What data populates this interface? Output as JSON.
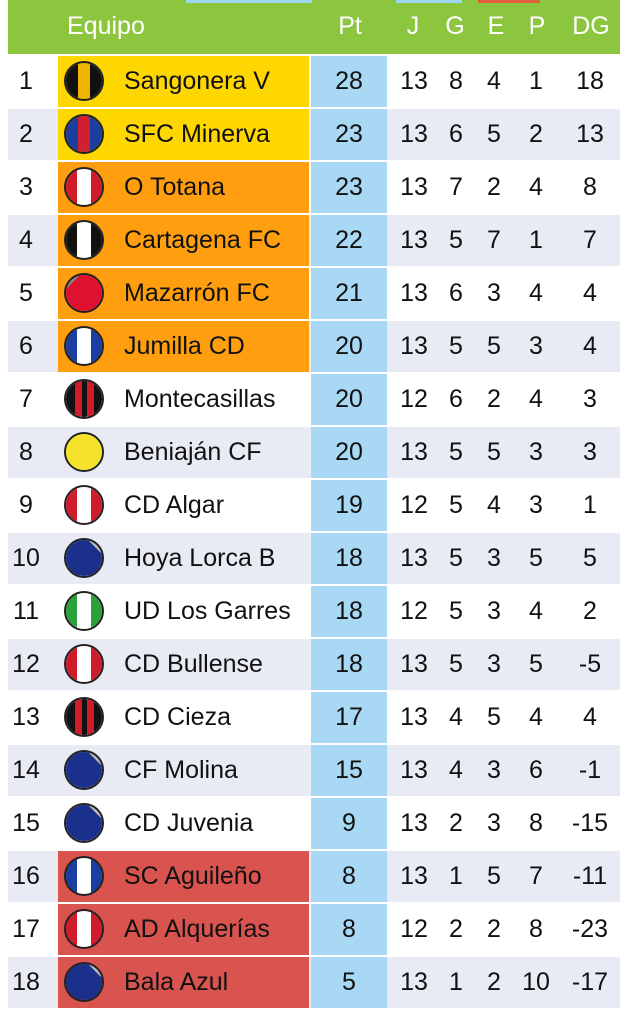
{
  "header": {
    "team": "Equipo",
    "pt": "Pt",
    "j": "J",
    "g": "G",
    "e": "E",
    "p": "P",
    "dg": "DG"
  },
  "colors": {
    "header_bg": "#8cc63f",
    "promotion": "#ffd700",
    "playoff": "#ff9f10",
    "relegation": "#d9534f",
    "points_bg": "#a8d8f4",
    "alt_row": "#e8ebf4"
  },
  "rows": [
    {
      "pos": "1",
      "team": "Sangonera V",
      "pt": "28",
      "j": "13",
      "g": "8",
      "e": "4",
      "p": "1",
      "dg": "18",
      "zone": "yellow",
      "crest": "black-gold-icon"
    },
    {
      "pos": "2",
      "team": "SFC Minerva",
      "pt": "23",
      "j": "13",
      "g": "6",
      "e": "5",
      "p": "2",
      "dg": "13",
      "zone": "yellow",
      "crest": "blue-red-icon"
    },
    {
      "pos": "3",
      "team": "O Totana",
      "pt": "23",
      "j": "13",
      "g": "7",
      "e": "2",
      "p": "4",
      "dg": "8",
      "zone": "orange",
      "crest": "red-white-icon"
    },
    {
      "pos": "4",
      "team": "Cartagena FC",
      "pt": "22",
      "j": "13",
      "g": "5",
      "e": "7",
      "p": "1",
      "dg": "7",
      "zone": "orange",
      "crest": "black-white-icon"
    },
    {
      "pos": "5",
      "team": "Mazarrón FC",
      "pt": "21",
      "j": "13",
      "g": "6",
      "e": "3",
      "p": "4",
      "dg": "4",
      "zone": "orange",
      "crest": "red-icon"
    },
    {
      "pos": "6",
      "team": "Jumilla CD",
      "pt": "20",
      "j": "13",
      "g": "5",
      "e": "5",
      "p": "3",
      "dg": "4",
      "zone": "orange",
      "crest": "blue-white-icon"
    },
    {
      "pos": "7",
      "team": "Montecasillas",
      "pt": "20",
      "j": "12",
      "g": "6",
      "e": "2",
      "p": "4",
      "dg": "3",
      "zone": "none",
      "crest": "red-black-icon"
    },
    {
      "pos": "8",
      "team": "Beniaján CF",
      "pt": "20",
      "j": "13",
      "g": "5",
      "e": "5",
      "p": "3",
      "dg": "3",
      "zone": "none",
      "crest": "yellow-icon"
    },
    {
      "pos": "9",
      "team": "CD Algar",
      "pt": "19",
      "j": "12",
      "g": "5",
      "e": "4",
      "p": "3",
      "dg": "1",
      "zone": "none",
      "crest": "red-white-icon"
    },
    {
      "pos": "10",
      "team": "Hoya Lorca B",
      "pt": "18",
      "j": "13",
      "g": "5",
      "e": "3",
      "p": "5",
      "dg": "5",
      "zone": "none",
      "crest": "navy-icon"
    },
    {
      "pos": "11",
      "team": "UD Los Garres",
      "pt": "18",
      "j": "12",
      "g": "5",
      "e": "3",
      "p": "4",
      "dg": "2",
      "zone": "none",
      "crest": "green-white-icon"
    },
    {
      "pos": "12",
      "team": "CD Bullense",
      "pt": "18",
      "j": "13",
      "g": "5",
      "e": "3",
      "p": "5",
      "dg": "-5",
      "zone": "none",
      "crest": "red-white-icon"
    },
    {
      "pos": "13",
      "team": "CD Cieza",
      "pt": "17",
      "j": "13",
      "g": "4",
      "e": "5",
      "p": "4",
      "dg": "4",
      "zone": "none",
      "crest": "red-black-icon"
    },
    {
      "pos": "14",
      "team": "CF Molina",
      "pt": "15",
      "j": "13",
      "g": "4",
      "e": "3",
      "p": "6",
      "dg": "-1",
      "zone": "none",
      "crest": "navy-icon"
    },
    {
      "pos": "15",
      "team": "CD Juvenia",
      "pt": "9",
      "j": "13",
      "g": "2",
      "e": "3",
      "p": "8",
      "dg": "-15",
      "zone": "none",
      "crest": "navy-icon"
    },
    {
      "pos": "16",
      "team": "SC Aguileño",
      "pt": "8",
      "j": "13",
      "g": "1",
      "e": "5",
      "p": "7",
      "dg": "-11",
      "zone": "red",
      "crest": "blue-white-icon"
    },
    {
      "pos": "17",
      "team": "AD Alquerías",
      "pt": "8",
      "j": "12",
      "g": "2",
      "e": "2",
      "p": "8",
      "dg": "-23",
      "zone": "red",
      "crest": "red-white-icon"
    },
    {
      "pos": "18",
      "team": "Bala Azul",
      "pt": "5",
      "j": "13",
      "g": "1",
      "e": "2",
      "p": "10",
      "dg": "-17",
      "zone": "red",
      "crest": "navy-icon"
    }
  ]
}
